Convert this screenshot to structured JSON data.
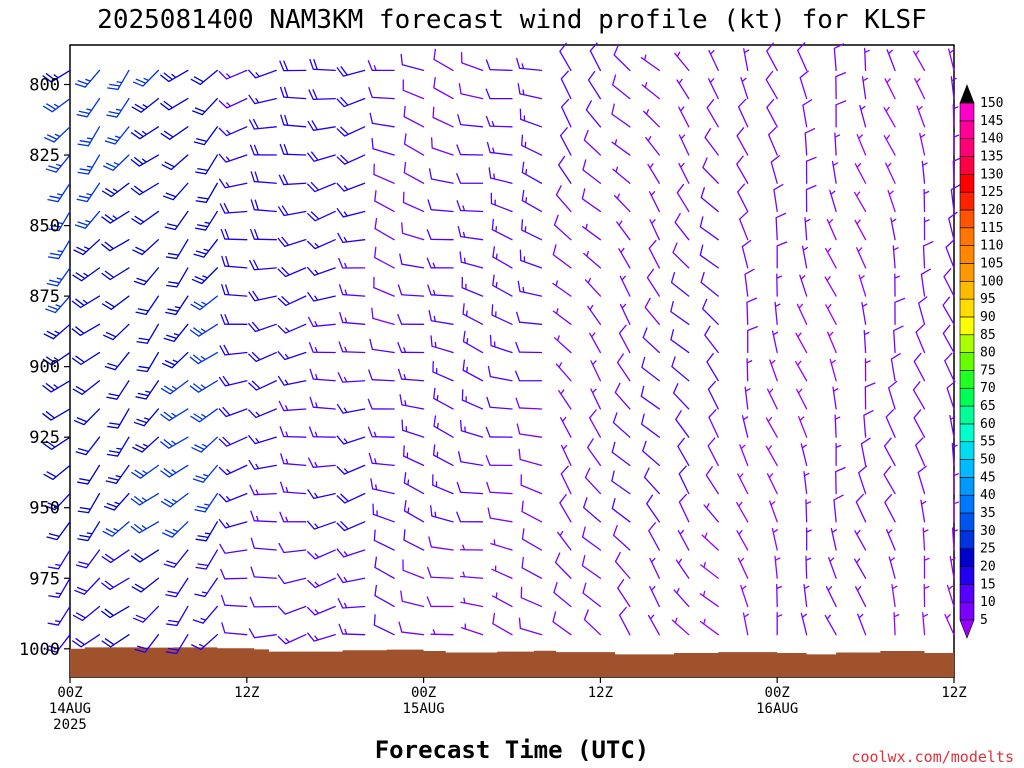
{
  "chart_data": {
    "type": "wind_profile",
    "title": "2025081400 NAM3KM forecast wind profile (kt) for KLSF",
    "xlabel": "Forecast Time (UTC)",
    "ylabel": "",
    "credit": "coolwx.com/modelts",
    "x_range_hours": [
      0,
      60
    ],
    "y_range_hPa": [
      1010,
      786
    ],
    "y_ticks": [
      800,
      825,
      850,
      875,
      900,
      925,
      950,
      975,
      1000
    ],
    "x_ticks": [
      {
        "hour": 0,
        "line1": "00Z",
        "line2": "14AUG",
        "line3": "2025"
      },
      {
        "hour": 12,
        "line1": "12Z",
        "line2": "",
        "line3": ""
      },
      {
        "hour": 24,
        "line1": "00Z",
        "line2": "15AUG",
        "line3": ""
      },
      {
        "hour": 36,
        "line1": "12Z",
        "line2": "",
        "line3": ""
      },
      {
        "hour": 48,
        "line1": "00Z",
        "line2": "16AUG",
        "line3": ""
      },
      {
        "hour": 60,
        "line1": "12Z",
        "line2": "",
        "line3": ""
      }
    ],
    "colorbar": {
      "levels": [
        5,
        10,
        15,
        20,
        25,
        30,
        35,
        40,
        45,
        50,
        55,
        60,
        65,
        70,
        75,
        80,
        85,
        90,
        95,
        100,
        105,
        110,
        115,
        120,
        125,
        130,
        135,
        140,
        145,
        150
      ],
      "colors": [
        "#7a00ff",
        "#5500ff",
        "#2200ee",
        "#0000cc",
        "#0033dd",
        "#0055ee",
        "#0077ff",
        "#0099ff",
        "#00bbff",
        "#00ddee",
        "#00ffcc",
        "#00ff99",
        "#00ff55",
        "#22ff22",
        "#66ff00",
        "#aaff00",
        "#ffff00",
        "#ffdd00",
        "#ffbb00",
        "#ff9900",
        "#ff8800",
        "#ff7700",
        "#ff5500",
        "#ff2200",
        "#ff0000",
        "#ff0044",
        "#ff0077",
        "#ff0099",
        "#ff00cc",
        "#ff00ff"
      ],
      "min_arrow_color": "#9900ff",
      "max_arrow_color": "#000000"
    },
    "surface_pressure": [
      {
        "hour": 0,
        "p": 1000.0
      },
      {
        "hour": 1,
        "p": 999.5
      },
      {
        "hour": 3,
        "p": 999.5
      },
      {
        "hour": 5,
        "p": 999.6
      },
      {
        "hour": 7,
        "p": 999.5
      },
      {
        "hour": 10,
        "p": 999.8
      },
      {
        "hour": 12.5,
        "p": 1000.2
      },
      {
        "hour": 13.5,
        "p": 1001.0
      },
      {
        "hour": 18.5,
        "p": 1000.5
      },
      {
        "hour": 21.5,
        "p": 1000.3
      },
      {
        "hour": 24,
        "p": 1000.8
      },
      {
        "hour": 25.5,
        "p": 1001.3
      },
      {
        "hour": 29,
        "p": 1001.0
      },
      {
        "hour": 31.5,
        "p": 1000.7
      },
      {
        "hour": 33,
        "p": 1001.2
      },
      {
        "hour": 37,
        "p": 1002.0
      },
      {
        "hour": 41,
        "p": 1001.5
      },
      {
        "hour": 44,
        "p": 1001.2
      },
      {
        "hour": 48,
        "p": 1001.5
      },
      {
        "hour": 50,
        "p": 1002.0
      },
      {
        "hour": 52,
        "p": 1001.3
      },
      {
        "hour": 55,
        "p": 1000.8
      },
      {
        "hour": 58,
        "p": 1001.5
      },
      {
        "hour": 60,
        "p": 1001.5
      }
    ],
    "barb_hours": [
      0,
      2,
      4,
      6,
      8,
      10,
      12,
      14,
      16,
      18,
      20,
      22,
      24,
      26,
      28,
      30,
      32,
      34,
      36,
      38,
      40,
      42,
      44,
      46,
      48,
      50,
      52,
      54,
      56,
      58,
      60
    ],
    "barb_levels_hPa": [
      795,
      805,
      815,
      825,
      835,
      845,
      855,
      865,
      875,
      885,
      895,
      905,
      915,
      925,
      935,
      945,
      955,
      965,
      975,
      985,
      995
    ],
    "wind_note": "speed kt and direction deg estimated per regime; generated on grid by script",
    "wind_regimes": [
      {
        "hours": [
          0,
          11
        ],
        "speed": 24,
        "dir": 225
      },
      {
        "hours": [
          12,
          21
        ],
        "speed": 17,
        "dir": 260
      },
      {
        "hours": [
          22,
          33
        ],
        "speed": 12,
        "dir": 285
      },
      {
        "hours": [
          34,
          45
        ],
        "speed": 9,
        "dir": 320
      },
      {
        "hours": [
          46,
          60
        ],
        "speed": 7,
        "dir": 345
      }
    ]
  }
}
